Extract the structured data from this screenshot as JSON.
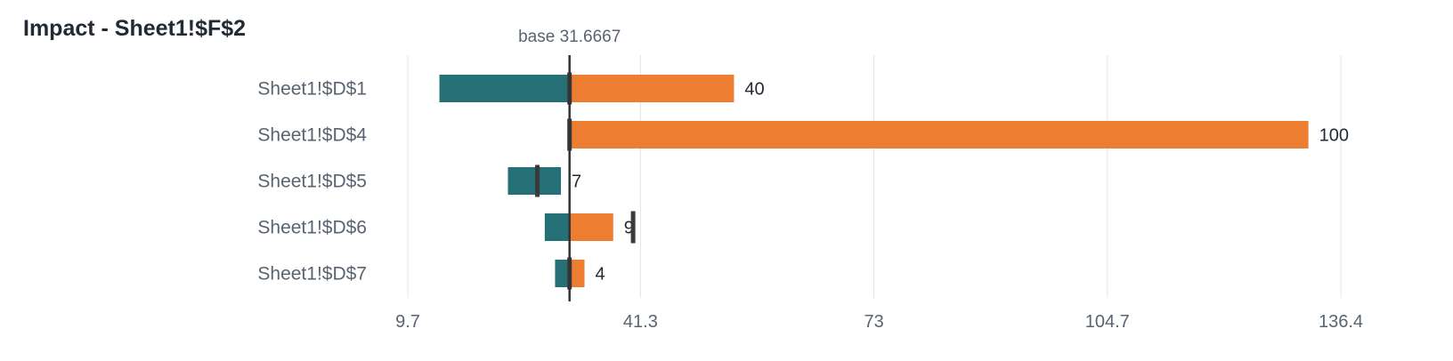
{
  "chart_data": {
    "type": "bar",
    "subtype": "tornado",
    "title": "Impact - Sheet1!$F$2",
    "base_value": 31.6667,
    "base_label": "base 31.6667",
    "x_ticks": [
      "9.7",
      "41.3",
      "73",
      "104.7",
      "136.4"
    ],
    "xlim": [
      9.7,
      136.4
    ],
    "grid": true,
    "colors": {
      "low": "#256f77",
      "high": "#ec7d31",
      "marker": "#3a3a3a",
      "grid": "#e4e4e4",
      "label": "#5a6470"
    },
    "rows": [
      {
        "name": "Sheet1!$D$1",
        "low": 14,
        "high": 54,
        "marker": 31.6667,
        "label": "40"
      },
      {
        "name": "Sheet1!$D$4",
        "low": 31.6667,
        "high": 132,
        "marker": 31.6667,
        "label": "100"
      },
      {
        "name": "Sheet1!$D$5",
        "low": 23.3,
        "high": 30.5,
        "marker": 27.3,
        "label": "7"
      },
      {
        "name": "Sheet1!$D$6",
        "low": 28.3,
        "high": 37.6,
        "marker": 40.3,
        "label": "9"
      },
      {
        "name": "Sheet1!$D$7",
        "low": 29.7,
        "high": 33.7,
        "marker": 31.6667,
        "label": "4"
      }
    ]
  }
}
